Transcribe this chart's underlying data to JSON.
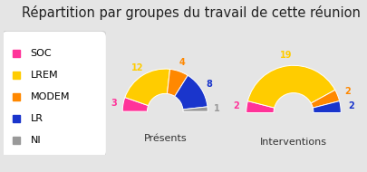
{
  "title": "Répartition par groupes du travail de cette réunion",
  "background_color": "#e5e5e5",
  "legend_items": [
    "SOC",
    "LREM",
    "MODEM",
    "LR",
    "NI"
  ],
  "colors": [
    "#ff3399",
    "#ffcc00",
    "#ff8800",
    "#1a35cc",
    "#999999"
  ],
  "chart1_label": "Présents",
  "chart1_values": [
    3,
    12,
    4,
    8,
    1
  ],
  "chart1_annot_colors": [
    "#ff3399",
    "#ffcc00",
    "#ff8800",
    "#1a35cc",
    "#999999"
  ],
  "chart2_label": "Interventions",
  "chart2_values": [
    2,
    19,
    2,
    2,
    0
  ],
  "chart2_annot_colors": [
    "#ff3399",
    "#ffcc00",
    "#ff8800",
    "#1a35cc",
    "#999999"
  ],
  "title_fontsize": 10.5,
  "label_fontsize": 8,
  "annot_fontsize": 7,
  "legend_fontsize": 8
}
